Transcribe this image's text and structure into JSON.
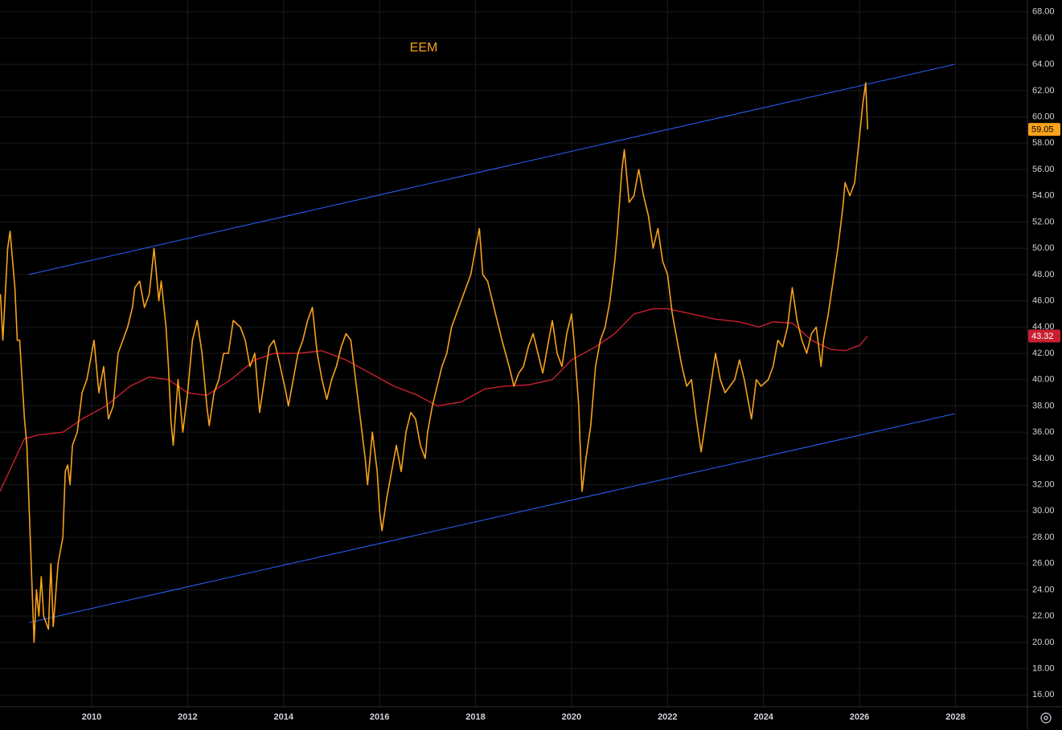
{
  "chart_data": {
    "type": "line",
    "title": "EEM",
    "xlim": [
      2008.09,
      2029.5
    ],
    "ylim": [
      15.1,
      68.9
    ],
    "xticks": [
      2010,
      2012,
      2014,
      2016,
      2018,
      2020,
      2022,
      2024,
      2026,
      2028
    ],
    "yticks": [
      {
        "value": 16,
        "label": "16.00"
      },
      {
        "value": 18,
        "label": "18.00"
      },
      {
        "value": 20,
        "label": "20.00"
      },
      {
        "value": 22,
        "label": "22.00"
      },
      {
        "value": 24,
        "label": "24.00"
      },
      {
        "value": 26,
        "label": "26.00"
      },
      {
        "value": 28,
        "label": "28.00"
      },
      {
        "value": 30,
        "label": "30.00"
      },
      {
        "value": 32,
        "label": "32.00"
      },
      {
        "value": 34,
        "label": "34.00"
      },
      {
        "value": 36,
        "label": "36.00"
      },
      {
        "value": 38,
        "label": "38.00"
      },
      {
        "value": 40,
        "label": "40.00"
      },
      {
        "value": 42,
        "label": "42.00"
      },
      {
        "value": 44,
        "label": "44.00"
      },
      {
        "value": 46,
        "label": "46.00"
      },
      {
        "value": 48,
        "label": "48.00"
      },
      {
        "value": 50,
        "label": "50.00"
      },
      {
        "value": 52,
        "label": "52.00"
      },
      {
        "value": 54,
        "label": "54.00"
      },
      {
        "value": 56,
        "label": "56.00"
      },
      {
        "value": 58,
        "label": "58.00"
      },
      {
        "value": 60,
        "label": "60.00"
      },
      {
        "value": 62,
        "label": "62.00"
      },
      {
        "value": 64,
        "label": "64.00"
      },
      {
        "value": 66,
        "label": "66.00"
      },
      {
        "value": 68,
        "label": "68.00"
      }
    ],
    "grid": true,
    "series": [
      {
        "color": "#f7a21b",
        "last_label": "59.05",
        "x": [
          2008.1,
          2008.15,
          2008.25,
          2008.3,
          2008.4,
          2008.45,
          2008.5,
          2008.6,
          2008.65,
          2008.7,
          2008.75,
          2008.8,
          2008.85,
          2008.9,
          2008.95,
          2009.0,
          2009.1,
          2009.15,
          2009.2,
          2009.3,
          2009.4,
          2009.45,
          2009.5,
          2009.55,
          2009.6,
          2009.7,
          2009.8,
          2009.9,
          2010.0,
          2010.05,
          2010.15,
          2010.25,
          2010.35,
          2010.45,
          2010.55,
          2010.65,
          2010.75,
          2010.85,
          2010.9,
          2011.0,
          2011.1,
          2011.2,
          2011.3,
          2011.35,
          2011.4,
          2011.45,
          2011.55,
          2011.6,
          2011.65,
          2011.7,
          2011.8,
          2011.9,
          2012.0,
          2012.1,
          2012.2,
          2012.3,
          2012.4,
          2012.45,
          2012.55,
          2012.65,
          2012.75,
          2012.85,
          2012.95,
          2013.1,
          2013.2,
          2013.3,
          2013.4,
          2013.5,
          2013.6,
          2013.7,
          2013.8,
          2013.9,
          2014.05,
          2014.1,
          2014.2,
          2014.3,
          2014.4,
          2014.5,
          2014.6,
          2014.7,
          2014.8,
          2014.9,
          2015.0,
          2015.1,
          2015.2,
          2015.3,
          2015.4,
          2015.5,
          2015.6,
          2015.7,
          2015.75,
          2015.85,
          2015.95,
          2016.0,
          2016.05,
          2016.15,
          2016.25,
          2016.35,
          2016.45,
          2016.55,
          2016.65,
          2016.75,
          2016.85,
          2016.95,
          2017.0,
          2017.1,
          2017.2,
          2017.3,
          2017.4,
          2017.5,
          2017.6,
          2017.7,
          2017.8,
          2017.9,
          2018.0,
          2018.08,
          2018.15,
          2018.25,
          2018.35,
          2018.45,
          2018.55,
          2018.7,
          2018.8,
          2018.9,
          2019.0,
          2019.1,
          2019.2,
          2019.3,
          2019.4,
          2019.5,
          2019.6,
          2019.7,
          2019.8,
          2019.9,
          2020.0,
          2020.05,
          2020.15,
          2020.2,
          2020.22,
          2020.3,
          2020.4,
          2020.5,
          2020.6,
          2020.7,
          2020.8,
          2020.9,
          2020.95,
          2021.05,
          2021.1,
          2021.2,
          2021.3,
          2021.4,
          2021.5,
          2021.6,
          2021.7,
          2021.8,
          2021.9,
          2022.0,
          2022.1,
          2022.2,
          2022.3,
          2022.4,
          2022.5,
          2022.6,
          2022.7,
          2022.8,
          2022.9,
          2023.0,
          2023.1,
          2023.2,
          2023.3,
          2023.4,
          2023.5,
          2023.6,
          2023.7,
          2023.75,
          2023.85,
          2023.95,
          2024.1,
          2024.2,
          2024.3,
          2024.4,
          2024.5,
          2024.6,
          2024.7,
          2024.8,
          2024.9,
          2025.0,
          2025.1,
          2025.2,
          2025.25,
          2025.35,
          2025.45,
          2025.55,
          2025.65,
          2025.7,
          2025.8,
          2025.9,
          2026.0,
          2026.07,
          2026.13,
          2026.17
        ],
        "values": [
          46.5,
          43,
          50,
          51.3,
          47,
          43,
          43,
          37,
          35,
          30,
          25,
          20,
          24,
          22,
          25,
          22,
          21,
          26,
          21.2,
          26,
          28,
          33,
          33.5,
          32,
          35,
          36,
          39,
          40,
          42,
          43,
          39,
          41,
          37,
          38,
          42,
          43,
          44,
          45.5,
          47,
          47.5,
          45.5,
          46.5,
          50,
          48,
          46,
          47.5,
          44,
          41,
          37,
          35,
          40,
          36,
          39,
          43,
          44.5,
          42,
          38,
          36.5,
          39,
          40,
          42,
          42,
          44.5,
          44,
          43,
          41,
          42,
          37.5,
          40,
          42.5,
          43,
          41.5,
          39,
          38,
          40,
          42,
          43,
          44.5,
          45.5,
          42,
          40,
          38.5,
          40,
          41,
          42.5,
          43.5,
          43,
          40,
          37,
          34,
          32,
          36,
          33,
          30,
          28.5,
          31,
          33,
          35,
          33,
          36,
          37.5,
          37,
          35,
          34,
          36,
          38,
          39.5,
          41,
          42,
          44,
          45,
          46,
          47,
          48,
          50,
          51.5,
          48,
          47.5,
          46,
          44.5,
          43,
          41,
          39.5,
          40.5,
          41,
          42.5,
          43.5,
          42,
          40.5,
          42.5,
          44.5,
          42,
          41,
          43.5,
          45,
          43,
          38,
          33,
          31.5,
          34,
          36.5,
          41,
          43,
          44,
          46,
          49,
          51,
          56,
          57.5,
          53.5,
          54,
          56,
          54,
          52.5,
          50,
          51.5,
          49,
          48,
          45,
          43,
          41,
          39.5,
          40,
          37,
          34.5,
          37,
          39.5,
          42,
          40,
          39,
          39.5,
          40,
          41.5,
          40,
          38,
          37,
          40,
          39.5,
          40,
          41,
          43,
          42.5,
          44,
          47,
          44.5,
          43,
          42,
          43.5,
          44,
          41,
          43,
          45,
          47.5,
          50,
          53,
          55,
          54,
          55,
          58.5,
          61,
          62.6,
          59.05
        ]
      },
      {
        "color": "#c9202f",
        "last_label": "43.32",
        "x": [
          2008.09,
          2008.6,
          2008.9,
          2009.4,
          2009.8,
          2010.3,
          2010.8,
          2011.2,
          2011.6,
          2012.0,
          2012.4,
          2012.9,
          2013.4,
          2013.8,
          2014.3,
          2014.8,
          2015.3,
          2015.8,
          2016.3,
          2016.8,
          2017.2,
          2017.7,
          2018.2,
          2018.6,
          2019.1,
          2019.6,
          2020.0,
          2020.5,
          2020.9,
          2021.3,
          2021.7,
          2022.0,
          2022.5,
          2023.0,
          2023.5,
          2023.9,
          2024.2,
          2024.6,
          2025.0,
          2025.4,
          2025.7,
          2026.0,
          2026.17
        ],
        "values": [
          31.5,
          35.5,
          35.8,
          36,
          37,
          38,
          39.5,
          40.2,
          40,
          39,
          38.8,
          40,
          41.5,
          42,
          42,
          42.2,
          41.5,
          40.5,
          39.5,
          38.8,
          38,
          38.3,
          39.3,
          39.5,
          39.6,
          40,
          41.5,
          42.5,
          43.5,
          45,
          45.4,
          45.4,
          45,
          44.6,
          44.4,
          44,
          44.4,
          44.3,
          43,
          42.3,
          42.2,
          42.6,
          43.32
        ]
      }
    ],
    "trendlines": [
      {
        "color": "#2962ff",
        "x": [
          2008.69,
          2027.98
        ],
        "values": [
          48.0,
          64.0
        ]
      },
      {
        "color": "#2962ff",
        "x": [
          2008.69,
          2027.98
        ],
        "values": [
          21.5,
          37.4
        ]
      }
    ]
  }
}
